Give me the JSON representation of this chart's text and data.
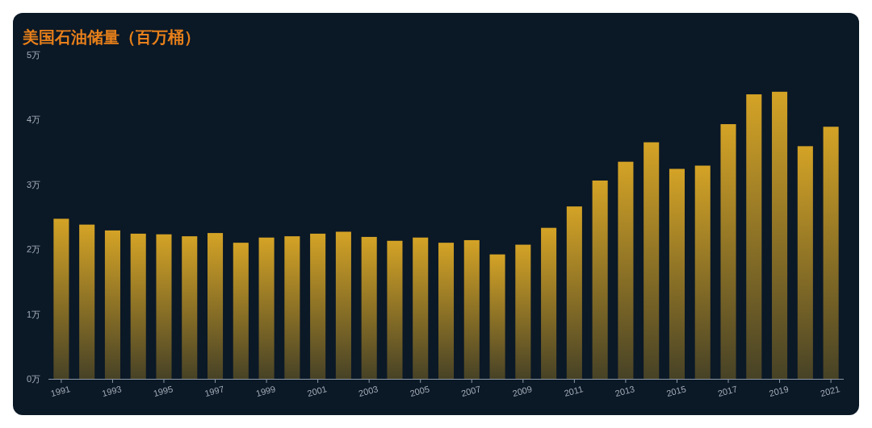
{
  "chart_data": {
    "type": "bar",
    "title": "美国石油储量（百万桶）",
    "categories": [
      "1991",
      null,
      "1993",
      null,
      "1995",
      null,
      "1997",
      null,
      "1999",
      null,
      "2001",
      null,
      "2003",
      null,
      "2005",
      null,
      "2007",
      null,
      "2009",
      null,
      "2011",
      null,
      "2013",
      null,
      "2015",
      null,
      "2017",
      null,
      "2019",
      null,
      "2021"
    ],
    "values": [
      2.47,
      2.38,
      2.29,
      2.24,
      2.23,
      2.2,
      2.25,
      2.1,
      2.18,
      2.2,
      2.24,
      2.27,
      2.19,
      2.13,
      2.18,
      2.1,
      2.14,
      1.92,
      2.07,
      2.33,
      2.66,
      3.06,
      3.35,
      3.65,
      3.24,
      3.29,
      3.93,
      4.39,
      4.43,
      3.59,
      3.89
    ],
    "color": "#d4a326",
    "ylim": [
      0,
      5
    ],
    "yticks": [
      {
        "value": 0,
        "label": "0万"
      },
      {
        "value": 1,
        "label": "1万"
      },
      {
        "value": 2,
        "label": "2万"
      },
      {
        "value": 3,
        "label": "3万"
      },
      {
        "value": 4,
        "label": "4万"
      },
      {
        "value": 5,
        "label": "5万"
      }
    ]
  }
}
